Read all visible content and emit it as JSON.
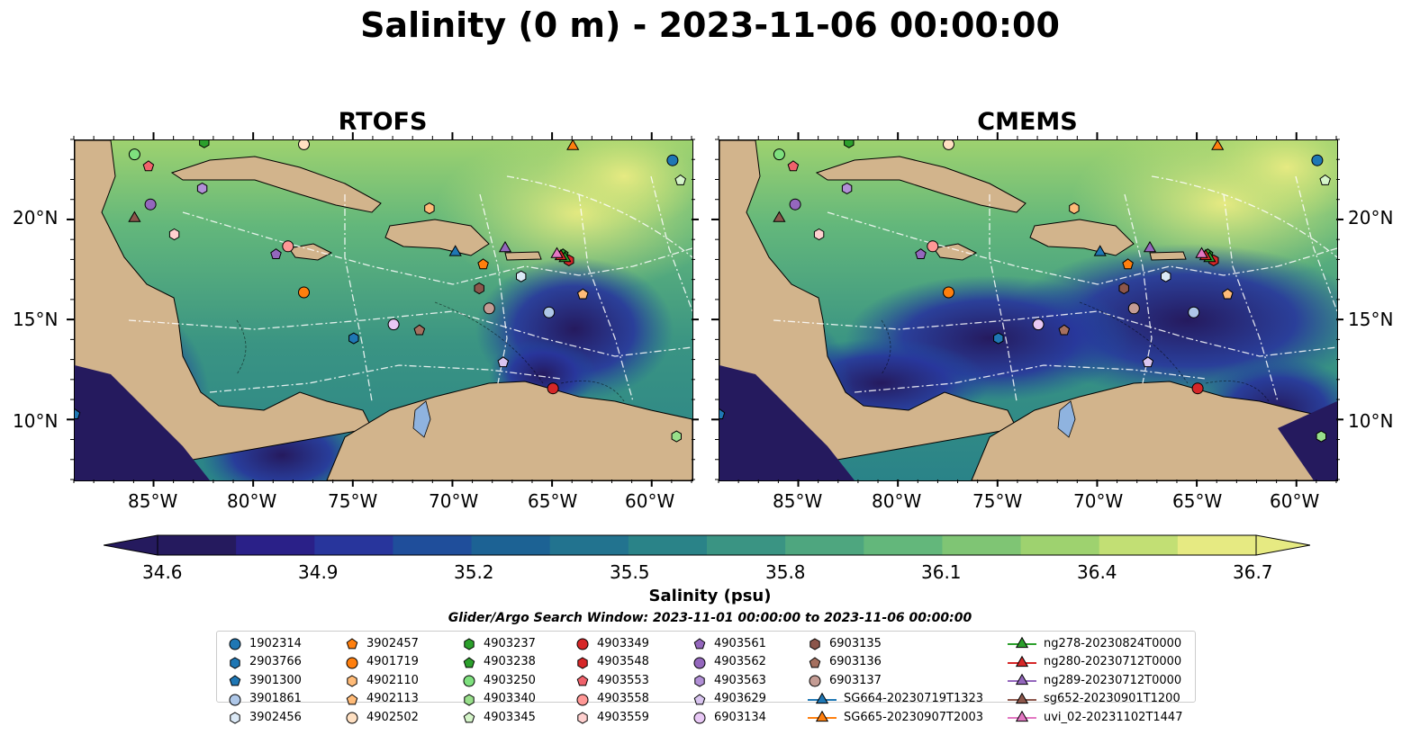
{
  "title": "Salinity (0 m) - 2023-11-06 00:00:00",
  "panels": [
    {
      "id": "rtofs",
      "title": "RTOFS"
    },
    {
      "id": "cmems",
      "title": "CMEMS"
    }
  ],
  "lat_labels": [
    "20°N",
    "15°N",
    "10°N"
  ],
  "lon_labels": [
    "85°W",
    "80°W",
    "75°W",
    "70°W",
    "65°W",
    "60°W"
  ],
  "colorbar": {
    "label": "Salinity (psu)",
    "ticks": [
      "34.6",
      "34.9",
      "35.2",
      "35.5",
      "35.8",
      "36.1",
      "36.4",
      "36.7"
    ],
    "colors": [
      "#251a5e",
      "#2a2088",
      "#28359c",
      "#1f4e9b",
      "#1c6294",
      "#22738f",
      "#2a8388",
      "#3a9483",
      "#4ea67f",
      "#63b77b",
      "#7fc574",
      "#9ed26f",
      "#c2df74",
      "#e6ea82"
    ]
  },
  "search_window": "Glider/Argo Search Window: 2023-11-01 00:00:00 to 2023-11-06 00:00:00",
  "legend": [
    {
      "label": "1902314",
      "shape": "circle",
      "color": "#1f77b4"
    },
    {
      "label": "2903766",
      "shape": "hexagon",
      "color": "#1f77b4"
    },
    {
      "label": "3901300",
      "shape": "pentagon",
      "color": "#1f77b4"
    },
    {
      "label": "3901861",
      "shape": "circle",
      "color": "#aec7e8"
    },
    {
      "label": "3902456",
      "shape": "hexagon",
      "color": "#dbe9f6"
    },
    {
      "label": "3902457",
      "shape": "pentagon",
      "color": "#ff7f0e"
    },
    {
      "label": "4901719",
      "shape": "circle",
      "color": "#ff7f0e"
    },
    {
      "label": "4902110",
      "shape": "hexagon",
      "color": "#ffbb78"
    },
    {
      "label": "4902113",
      "shape": "pentagon",
      "color": "#ffbb78"
    },
    {
      "label": "4902502",
      "shape": "circle",
      "color": "#ffe0c2"
    },
    {
      "label": "4903237",
      "shape": "hexagon",
      "color": "#2ca02c"
    },
    {
      "label": "4903238",
      "shape": "pentagon",
      "color": "#2ca02c"
    },
    {
      "label": "4903250",
      "shape": "circle",
      "color": "#7ee07e"
    },
    {
      "label": "4903340",
      "shape": "hexagon",
      "color": "#98df8a"
    },
    {
      "label": "4903345",
      "shape": "pentagon",
      "color": "#d5f5c9"
    },
    {
      "label": "4903349",
      "shape": "circle",
      "color": "#d62728"
    },
    {
      "label": "4903548",
      "shape": "hexagon",
      "color": "#d62728"
    },
    {
      "label": "4903553",
      "shape": "pentagon",
      "color": "#f0626b"
    },
    {
      "label": "4903558",
      "shape": "circle",
      "color": "#ff9896"
    },
    {
      "label": "4903559",
      "shape": "hexagon",
      "color": "#ffd0cf"
    },
    {
      "label": "4903561",
      "shape": "pentagon",
      "color": "#9467bd"
    },
    {
      "label": "4903562",
      "shape": "circle",
      "color": "#9467bd"
    },
    {
      "label": "4903563",
      "shape": "hexagon",
      "color": "#b18fd6"
    },
    {
      "label": "4903629",
      "shape": "pentagon",
      "color": "#d9c5f0"
    },
    {
      "label": "6903134",
      "shape": "circle",
      "color": "#e8c8f5"
    },
    {
      "label": "6903135",
      "shape": "hexagon",
      "color": "#8c564b"
    },
    {
      "label": "6903136",
      "shape": "pentagon",
      "color": "#a5705f"
    },
    {
      "label": "6903137",
      "shape": "circle",
      "color": "#c49c94"
    },
    {
      "label": "SG664-20230719T1323",
      "shape": "triangle-line",
      "color": "#1f77b4"
    },
    {
      "label": "SG665-20230907T2003",
      "shape": "triangle-line",
      "color": "#ff7f0e"
    },
    {
      "label": "ng278-20230824T0000",
      "shape": "triangle-line",
      "color": "#2ca02c"
    },
    {
      "label": "ng280-20230712T0000",
      "shape": "triangle-line",
      "color": "#d62728"
    },
    {
      "label": "ng289-20230712T0000",
      "shape": "triangle-line",
      "color": "#9467bd"
    },
    {
      "label": "sg652-20230901T1200",
      "shape": "triangle-line",
      "color": "#8c564b"
    },
    {
      "label": "uvi_02-20231102T1447",
      "shape": "triangle-line",
      "color": "#e377c2"
    }
  ],
  "map_extent": {
    "lon": [
      -89,
      -58
    ],
    "lat": [
      7,
      24
    ]
  },
  "platforms": [
    {
      "lon": -59,
      "lat": 23,
      "marker": 0
    },
    {
      "lon": -75,
      "lat": 14.1,
      "marker": 1
    },
    {
      "lon": -89,
      "lat": 10.3,
      "marker": 2
    },
    {
      "lon": -65.2,
      "lat": 15.4,
      "marker": 3
    },
    {
      "lon": -66.6,
      "lat": 17.2,
      "marker": 4
    },
    {
      "lon": -68.5,
      "lat": 17.8,
      "marker": 5
    },
    {
      "lon": -77.5,
      "lat": 16.4,
      "marker": 6
    },
    {
      "lon": -71.2,
      "lat": 20.6,
      "marker": 7
    },
    {
      "lon": -63.5,
      "lat": 16.3,
      "marker": 8
    },
    {
      "lon": -77.5,
      "lat": 23.8,
      "marker": 9
    },
    {
      "lon": -82.5,
      "lat": 23.9,
      "marker": 10
    },
    {
      "lon": -64.5,
      "lat": 18.3,
      "marker": 11
    },
    {
      "lon": -86,
      "lat": 23.3,
      "marker": 12
    },
    {
      "lon": -58.8,
      "lat": 9.2,
      "marker": 13
    },
    {
      "lon": -58.6,
      "lat": 22.0,
      "marker": 14
    },
    {
      "lon": -65,
      "lat": 11.6,
      "marker": 15
    },
    {
      "lon": -64.2,
      "lat": 18.0,
      "marker": 16
    },
    {
      "lon": -85.3,
      "lat": 22.7,
      "marker": 17
    },
    {
      "lon": -78.3,
      "lat": 18.7,
      "marker": 18
    },
    {
      "lon": -84,
      "lat": 19.3,
      "marker": 19
    },
    {
      "lon": -78.9,
      "lat": 18.3,
      "marker": 20
    },
    {
      "lon": -85.2,
      "lat": 20.8,
      "marker": 21
    },
    {
      "lon": -82.6,
      "lat": 21.6,
      "marker": 22
    },
    {
      "lon": -67.5,
      "lat": 12.9,
      "marker": 23
    },
    {
      "lon": -73,
      "lat": 14.8,
      "marker": 24
    },
    {
      "lon": -68.7,
      "lat": 16.6,
      "marker": 25
    },
    {
      "lon": -71.7,
      "lat": 14.5,
      "marker": 26
    },
    {
      "lon": -68.2,
      "lat": 15.6,
      "marker": 27
    },
    {
      "lon": -69.9,
      "lat": 18.4,
      "marker": 28
    },
    {
      "lon": -64,
      "lat": 23.7,
      "marker": 29
    },
    {
      "lon": -64.4,
      "lat": 18.1,
      "marker": 30
    },
    {
      "lon": -64.6,
      "lat": 18.2,
      "marker": 31
    },
    {
      "lon": -67.4,
      "lat": 18.6,
      "marker": 32
    },
    {
      "lon": -86,
      "lat": 20.1,
      "marker": 33
    },
    {
      "lon": -64.8,
      "lat": 18.3,
      "marker": 34
    }
  ]
}
